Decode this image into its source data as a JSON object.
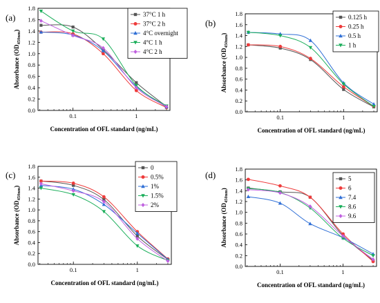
{
  "chart_data": [
    {
      "panel_label": "(a)",
      "type": "line",
      "xscale": "log",
      "x": [
        0.03125,
        0.1,
        0.3,
        1,
        3
      ],
      "xlim": [
        0.028,
        3.4
      ],
      "xtick_values": [
        0.1,
        1
      ],
      "xtick_labels": [
        "0.1",
        "1"
      ],
      "ylim": [
        0,
        1.8
      ],
      "ytick_values": [
        0,
        0.2,
        0.4,
        0.6,
        0.8,
        1,
        1.2,
        1.4,
        1.6,
        1.8
      ],
      "ytick_labels": [
        "0.0",
        "0.2",
        "0.4",
        "0.6",
        "0.8",
        "1.0",
        "1.2",
        "1.4",
        "1.6",
        "1.8"
      ],
      "xlabel": "Concentration of OFL standard (ng/mL)",
      "ylabel": "Absorbance (OD",
      "ylabel_sub": "450nm",
      "ylabel_close": ")",
      "series": [
        {
          "name": "37°C 1 h",
          "color": "#555555",
          "marker": "square",
          "values": [
            1.5,
            1.47,
            1.07,
            0.49,
            0.07
          ]
        },
        {
          "name": "37°C 2 h",
          "color": "#ee3b3b",
          "marker": "circle",
          "values": [
            1.38,
            1.35,
            1.0,
            0.35,
            0.05
          ]
        },
        {
          "name": "4°C overnight",
          "color": "#2f6fd6",
          "marker": "triangle-up",
          "values": [
            1.38,
            1.33,
            1.05,
            0.42,
            0.06
          ]
        },
        {
          "name": "4°C 1 h",
          "color": "#1aae5a",
          "marker": "triangle-down",
          "values": [
            1.75,
            1.4,
            1.26,
            0.44,
            0.08
          ]
        },
        {
          "name": "4°C 2 h",
          "color": "#c060e0",
          "marker": "diamond",
          "values": [
            1.58,
            1.32,
            1.1,
            0.4,
            0.07
          ]
        }
      ]
    },
    {
      "panel_label": "(b)",
      "type": "line",
      "xscale": "log",
      "x": [
        0.03125,
        0.1,
        0.3,
        1,
        3
      ],
      "xlim": [
        0.028,
        3.4
      ],
      "xtick_values": [
        0.1,
        1
      ],
      "xtick_labels": [
        "0.1",
        "1"
      ],
      "ylim": [
        0,
        1.8
      ],
      "ytick_values": [
        0,
        0.2,
        0.4,
        0.6,
        0.8,
        1,
        1.2,
        1.4,
        1.6,
        1.8
      ],
      "ytick_labels": [
        "0.0",
        "0.2",
        "0.4",
        "0.6",
        "0.8",
        "1.0",
        "1.2",
        "1.4",
        "1.6",
        "1.8"
      ],
      "xlabel": "Concentration of OFL standard (ng/mL)",
      "ylabel": "Absorbance (OD",
      "ylabel_sub": "450nm",
      "ylabel_close": ")",
      "series": [
        {
          "name": "0.125 h",
          "color": "#555555",
          "marker": "square",
          "values": [
            1.23,
            1.17,
            0.96,
            0.41,
            0.09
          ]
        },
        {
          "name": "0.25 h",
          "color": "#ee3b3b",
          "marker": "circle",
          "values": [
            1.23,
            1.2,
            0.98,
            0.46,
            0.1
          ]
        },
        {
          "name": "0.5 h",
          "color": "#2f6fd6",
          "marker": "triangle-up",
          "values": [
            1.46,
            1.43,
            1.31,
            0.53,
            0.14
          ]
        },
        {
          "name": "1 h",
          "color": "#1aae5a",
          "marker": "triangle-down",
          "values": [
            1.46,
            1.4,
            1.18,
            0.51,
            0.1
          ]
        }
      ]
    },
    {
      "panel_label": "(c)",
      "type": "line",
      "xscale": "log",
      "x": [
        0.03125,
        0.1,
        0.3,
        1,
        3
      ],
      "xlim": [
        0.028,
        3.4
      ],
      "xtick_values": [
        0.1,
        1
      ],
      "xtick_labels": [
        "0.1",
        "1"
      ],
      "ylim": [
        0,
        1.8
      ],
      "ytick_values": [
        0,
        0.2,
        0.4,
        0.6,
        0.8,
        1,
        1.2,
        1.4,
        1.6,
        1.8
      ],
      "ytick_labels": [
        "0.0",
        "0.2",
        "0.4",
        "0.6",
        "0.8",
        "1.0",
        "1.2",
        "1.4",
        "1.6",
        "1.8"
      ],
      "xlabel": "Concentration of OFL standard (ng/mL)",
      "ylabel": "Absorbance (OD",
      "ylabel_sub": "450nm",
      "ylabel_close": ")",
      "series": [
        {
          "name": "0",
          "color": "#555555",
          "marker": "square",
          "values": [
            1.53,
            1.45,
            1.19,
            0.52,
            0.09
          ]
        },
        {
          "name": "0.5%",
          "color": "#ee3b3b",
          "marker": "circle",
          "values": [
            1.53,
            1.49,
            1.24,
            0.6,
            0.1
          ]
        },
        {
          "name": "1%",
          "color": "#2f6fd6",
          "marker": "triangle-up",
          "values": [
            1.45,
            1.38,
            1.1,
            0.57,
            0.09
          ]
        },
        {
          "name": "1.5%",
          "color": "#1aae5a",
          "marker": "triangle-down",
          "values": [
            1.4,
            1.28,
            0.97,
            0.34,
            0.07
          ]
        },
        {
          "name": "2%",
          "color": "#c060e0",
          "marker": "diamond",
          "values": [
            1.48,
            1.35,
            1.15,
            0.47,
            0.06
          ]
        }
      ]
    },
    {
      "panel_label": "(d)",
      "type": "line",
      "xscale": "log",
      "x": [
        0.03125,
        0.1,
        0.3,
        1,
        3
      ],
      "xlim": [
        0.028,
        3.4
      ],
      "xtick_values": [
        0.1,
        1
      ],
      "xtick_labels": [
        "0.1",
        "1"
      ],
      "ylim": [
        0,
        1.8
      ],
      "ytick_values": [
        0,
        0.2,
        0.4,
        0.6,
        0.8,
        1,
        1.2,
        1.4,
        1.6,
        1.8
      ],
      "ytick_labels": [
        "0.0",
        "0.2",
        "0.4",
        "0.6",
        "0.8",
        "1.0",
        "1.2",
        "1.4",
        "1.6",
        "1.8"
      ],
      "xlabel": "Concentration of OFL standard (ng/mL)",
      "ylabel": "Absorbance (OD",
      "ylabel_sub": "450nm",
      "ylabel_close": ")",
      "series": [
        {
          "name": "5",
          "color": "#555555",
          "marker": "square",
          "values": [
            1.45,
            1.38,
            1.28,
            0.57,
            0.11
          ]
        },
        {
          "name": "6",
          "color": "#ee3b3b",
          "marker": "circle",
          "values": [
            1.61,
            1.49,
            1.28,
            0.6,
            0.09
          ]
        },
        {
          "name": "7.4",
          "color": "#2f6fd6",
          "marker": "triangle-up",
          "values": [
            1.29,
            1.17,
            0.79,
            0.53,
            0.23
          ]
        },
        {
          "name": "8.6",
          "color": "#1aae5a",
          "marker": "triangle-down",
          "values": [
            1.44,
            1.37,
            1.08,
            0.52,
            0.2
          ]
        },
        {
          "name": "9.6",
          "color": "#c060e0",
          "marker": "diamond",
          "values": [
            1.42,
            1.36,
            1.11,
            0.56,
            0.13
          ]
        }
      ]
    }
  ]
}
